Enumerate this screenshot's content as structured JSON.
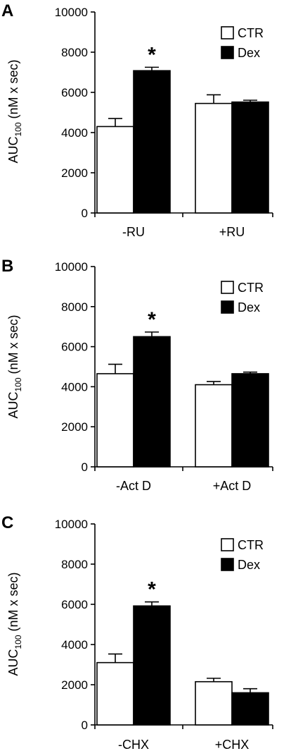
{
  "colors": {
    "ctr": "#ffffff",
    "dex": "#000000",
    "axis": "#000000"
  },
  "chart_data": [
    {
      "type": "bar",
      "panel_label": "A",
      "ylabel_main": "AUC",
      "ylabel_sub": "100",
      "ylabel_unit": "(nM x sec)",
      "ylim": [
        0,
        10000
      ],
      "yticks": [
        "0",
        "2000",
        "4000",
        "6000",
        "8000",
        "10000"
      ],
      "categories": [
        "-RU",
        "+RU"
      ],
      "legend_placement": "top-right",
      "series": [
        {
          "name": "CTR",
          "values": [
            4300,
            5450
          ],
          "errors": [
            400,
            430
          ]
        },
        {
          "name": "Dex",
          "values": [
            7080,
            5520
          ],
          "errors": [
            170,
            90
          ]
        }
      ],
      "annotations": [
        {
          "text": "*",
          "category": 0,
          "series": 1
        }
      ]
    },
    {
      "type": "bar",
      "panel_label": "B",
      "ylabel_main": "AUC",
      "ylabel_sub": "100",
      "ylabel_unit": "(nM x sec)",
      "ylim": [
        0,
        10000
      ],
      "yticks": [
        "0",
        "2000",
        "4000",
        "6000",
        "8000",
        "10000"
      ],
      "categories": [
        "-Act D",
        "+Act D"
      ],
      "legend_placement": "top-right",
      "series": [
        {
          "name": "CTR",
          "values": [
            4650,
            4100
          ],
          "errors": [
            470,
            160
          ]
        },
        {
          "name": "Dex",
          "values": [
            6500,
            4650
          ],
          "errors": [
            230,
            80
          ]
        }
      ],
      "annotations": [
        {
          "text": "*",
          "category": 0,
          "series": 1
        }
      ]
    },
    {
      "type": "bar",
      "panel_label": "C",
      "ylabel_main": "AUC",
      "ylabel_sub": "100",
      "ylabel_unit": "(nM x sec)",
      "ylim": [
        0,
        10000
      ],
      "yticks": [
        "0",
        "2000",
        "4000",
        "6000",
        "8000",
        "10000"
      ],
      "categories": [
        "-CHX",
        "+CHX"
      ],
      "legend_placement": "top-right",
      "series": [
        {
          "name": "CTR",
          "values": [
            3100,
            2150
          ],
          "errors": [
            430,
            170
          ]
        },
        {
          "name": "Dex",
          "values": [
            5920,
            1600
          ],
          "errors": [
            200,
            200
          ]
        }
      ],
      "annotations": [
        {
          "text": "*",
          "category": 0,
          "series": 1
        }
      ]
    }
  ]
}
